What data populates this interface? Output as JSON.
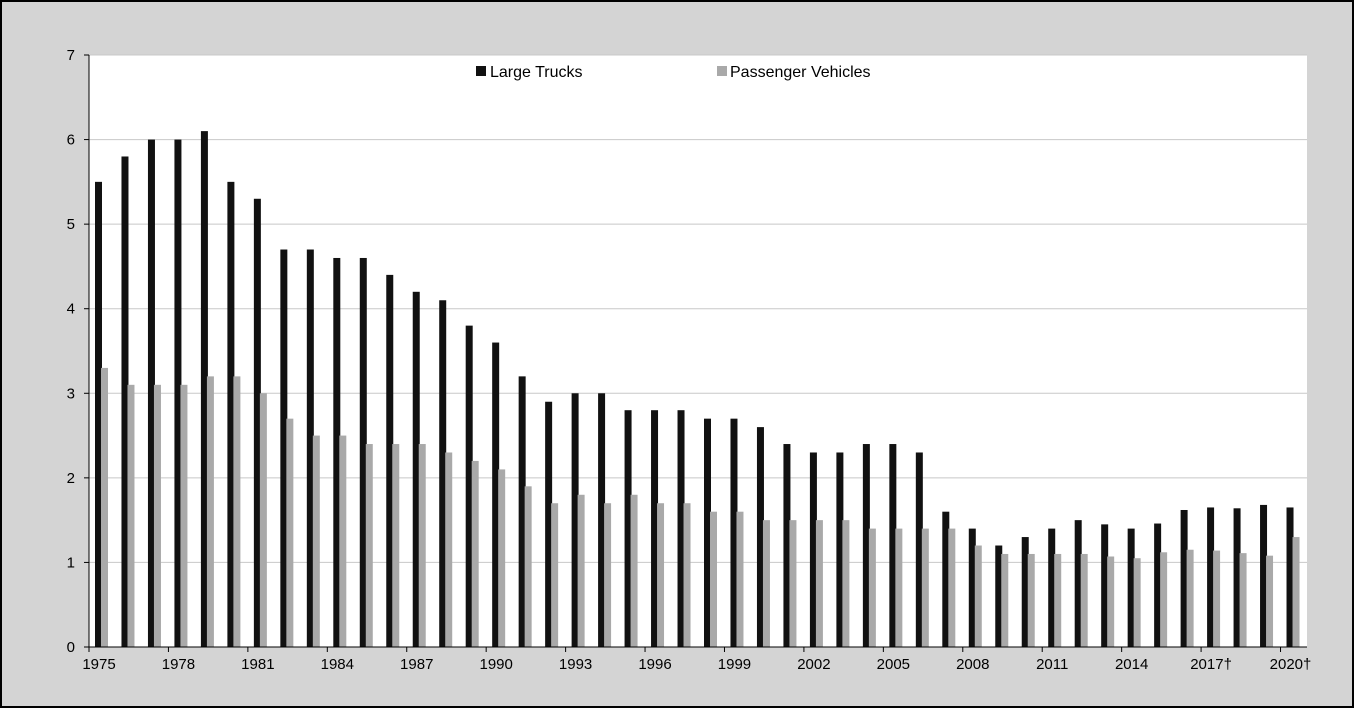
{
  "chart_data": {
    "type": "bar",
    "title": "",
    "xlabel": "",
    "ylabel": "",
    "ylim": [
      0,
      7
    ],
    "yticks": [
      "0",
      "1",
      "2",
      "3",
      "4",
      "5",
      "6",
      "7"
    ],
    "grid": "horizontal",
    "legend_position": "top-center",
    "categories": [
      "1975",
      "1976",
      "1977",
      "1978",
      "1979",
      "1980",
      "1981",
      "1982",
      "1983",
      "1984",
      "1985",
      "1986",
      "1987",
      "1988",
      "1989",
      "1990",
      "1991",
      "1992",
      "1993",
      "1994",
      "1995",
      "1996",
      "1997",
      "1998",
      "1999",
      "2000",
      "2001",
      "2002",
      "2003",
      "2004",
      "2005",
      "2006",
      "2007",
      "2008",
      "2009",
      "2010",
      "2011",
      "2012",
      "2013",
      "2014",
      "2015",
      "2016",
      "2017†",
      "2018",
      "2019",
      "2020†"
    ],
    "xtick_labels": [
      {
        "index": 0,
        "label": "1975"
      },
      {
        "index": 3,
        "label": "1978"
      },
      {
        "index": 6,
        "label": "1981"
      },
      {
        "index": 9,
        "label": "1984"
      },
      {
        "index": 12,
        "label": "1987"
      },
      {
        "index": 15,
        "label": "1990"
      },
      {
        "index": 18,
        "label": "1993"
      },
      {
        "index": 21,
        "label": "1996"
      },
      {
        "index": 24,
        "label": "1999"
      },
      {
        "index": 27,
        "label": "2002"
      },
      {
        "index": 30,
        "label": "2005"
      },
      {
        "index": 33,
        "label": "2008"
      },
      {
        "index": 36,
        "label": "2011"
      },
      {
        "index": 39,
        "label": "2014"
      },
      {
        "index": 42,
        "label": "2017†"
      },
      {
        "index": 45,
        "label": "2020†"
      }
    ],
    "series": [
      {
        "name": "Large Trucks",
        "color": "#111111",
        "values": [
          5.5,
          5.8,
          6.0,
          6.0,
          6.1,
          5.5,
          5.3,
          4.7,
          4.7,
          4.6,
          4.6,
          4.4,
          4.2,
          4.1,
          3.8,
          3.6,
          3.2,
          2.9,
          3.0,
          3.0,
          2.8,
          2.8,
          2.8,
          2.7,
          2.7,
          2.6,
          2.4,
          2.3,
          2.3,
          2.4,
          2.4,
          2.3,
          1.6,
          1.4,
          1.2,
          1.3,
          1.4,
          1.5,
          1.45,
          1.4,
          1.46,
          1.62,
          1.65,
          1.64,
          1.68,
          1.65
        ]
      },
      {
        "name": "Passenger Vehicles",
        "color": "#a9a9a9",
        "values": [
          3.3,
          3.1,
          3.1,
          3.1,
          3.2,
          3.2,
          3.0,
          2.7,
          2.5,
          2.5,
          2.4,
          2.4,
          2.4,
          2.3,
          2.2,
          2.1,
          1.9,
          1.7,
          1.8,
          1.7,
          1.8,
          1.7,
          1.7,
          1.6,
          1.6,
          1.5,
          1.5,
          1.5,
          1.5,
          1.4,
          1.4,
          1.4,
          1.4,
          1.2,
          1.1,
          1.1,
          1.1,
          1.1,
          1.07,
          1.05,
          1.12,
          1.15,
          1.14,
          1.11,
          1.08,
          1.3
        ]
      }
    ]
  }
}
